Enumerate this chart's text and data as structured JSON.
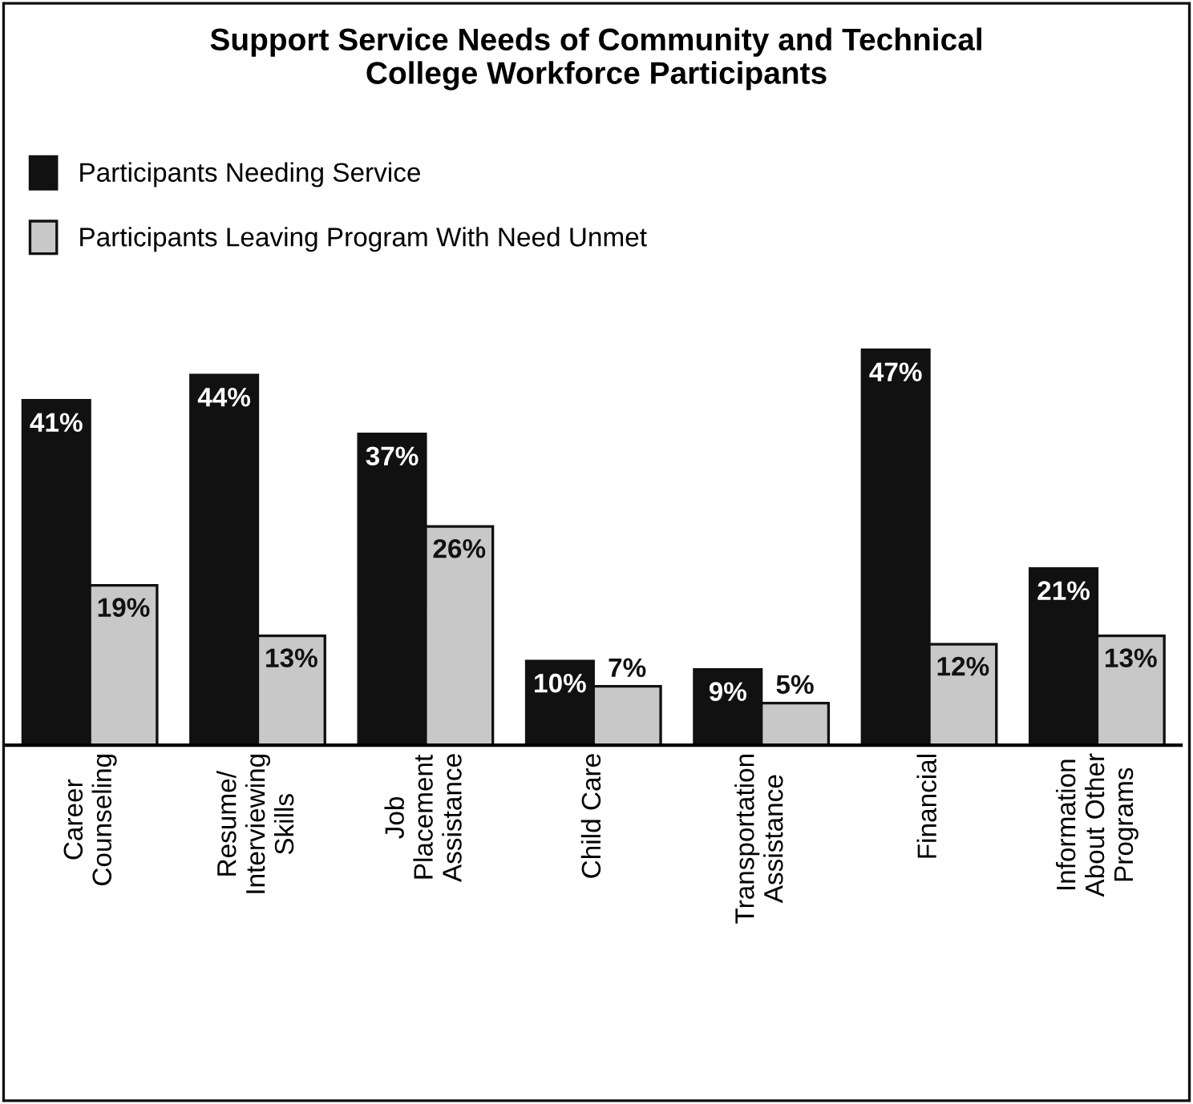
{
  "chart_data": {
    "type": "bar",
    "title": "Support Service Needs of Community and Technical\nCollege Workforce Participants",
    "categories": [
      "Career\nCounseling",
      "Resume/\nInterviewing\nSkills",
      "Job\nPlacement\nAssistance",
      "Child Care",
      "Transportation\nAssistance",
      "Financial",
      "Information\nAbout Other\nPrograms"
    ],
    "series": [
      {
        "name": "Participants Needing Service",
        "color": "#111111",
        "values": [
          41,
          44,
          37,
          10,
          9,
          47,
          21
        ],
        "value_labels": [
          "41%",
          "44%",
          "37%",
          "10%",
          "9%",
          "47%",
          "21%"
        ]
      },
      {
        "name": "Participants Leaving Program With Need Unmet",
        "color": "#c8c8c8",
        "values": [
          19,
          13,
          26,
          7,
          5,
          12,
          13
        ],
        "value_labels": [
          "19%",
          "13%",
          "26%",
          "7%",
          "5%",
          "12%",
          "13%"
        ]
      }
    ],
    "legend": "top left",
    "grid": false
  }
}
